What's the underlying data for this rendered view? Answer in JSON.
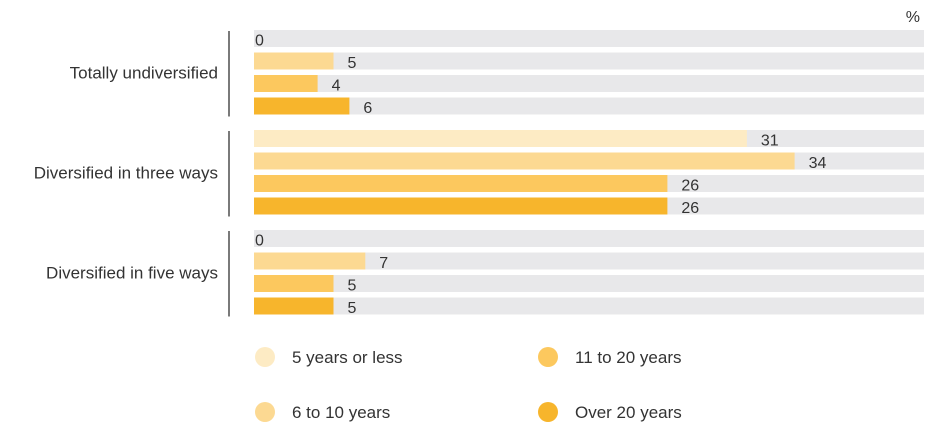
{
  "chart_data": {
    "type": "bar",
    "orientation": "horizontal",
    "unit": "%",
    "xlim": [
      0,
      40
    ],
    "grid": false,
    "legend_position": "bottom",
    "categories": [
      "Totally undiversified",
      "Diversified in three ways",
      "Diversified in five ways"
    ],
    "series": [
      {
        "name": "5 years or less",
        "color": "#FDEBC4",
        "values": [
          0,
          31,
          0
        ]
      },
      {
        "name": "6 to 10 years",
        "color": "#FCD992",
        "values": [
          5,
          34,
          7
        ]
      },
      {
        "name": "11 to 20 years",
        "color": "#FCC85E",
        "values": [
          4,
          26,
          5
        ]
      },
      {
        "name": "Over 20 years",
        "color": "#F7B52C",
        "values": [
          6,
          26,
          5
        ]
      }
    ],
    "track_color": "#E8E8EA"
  }
}
